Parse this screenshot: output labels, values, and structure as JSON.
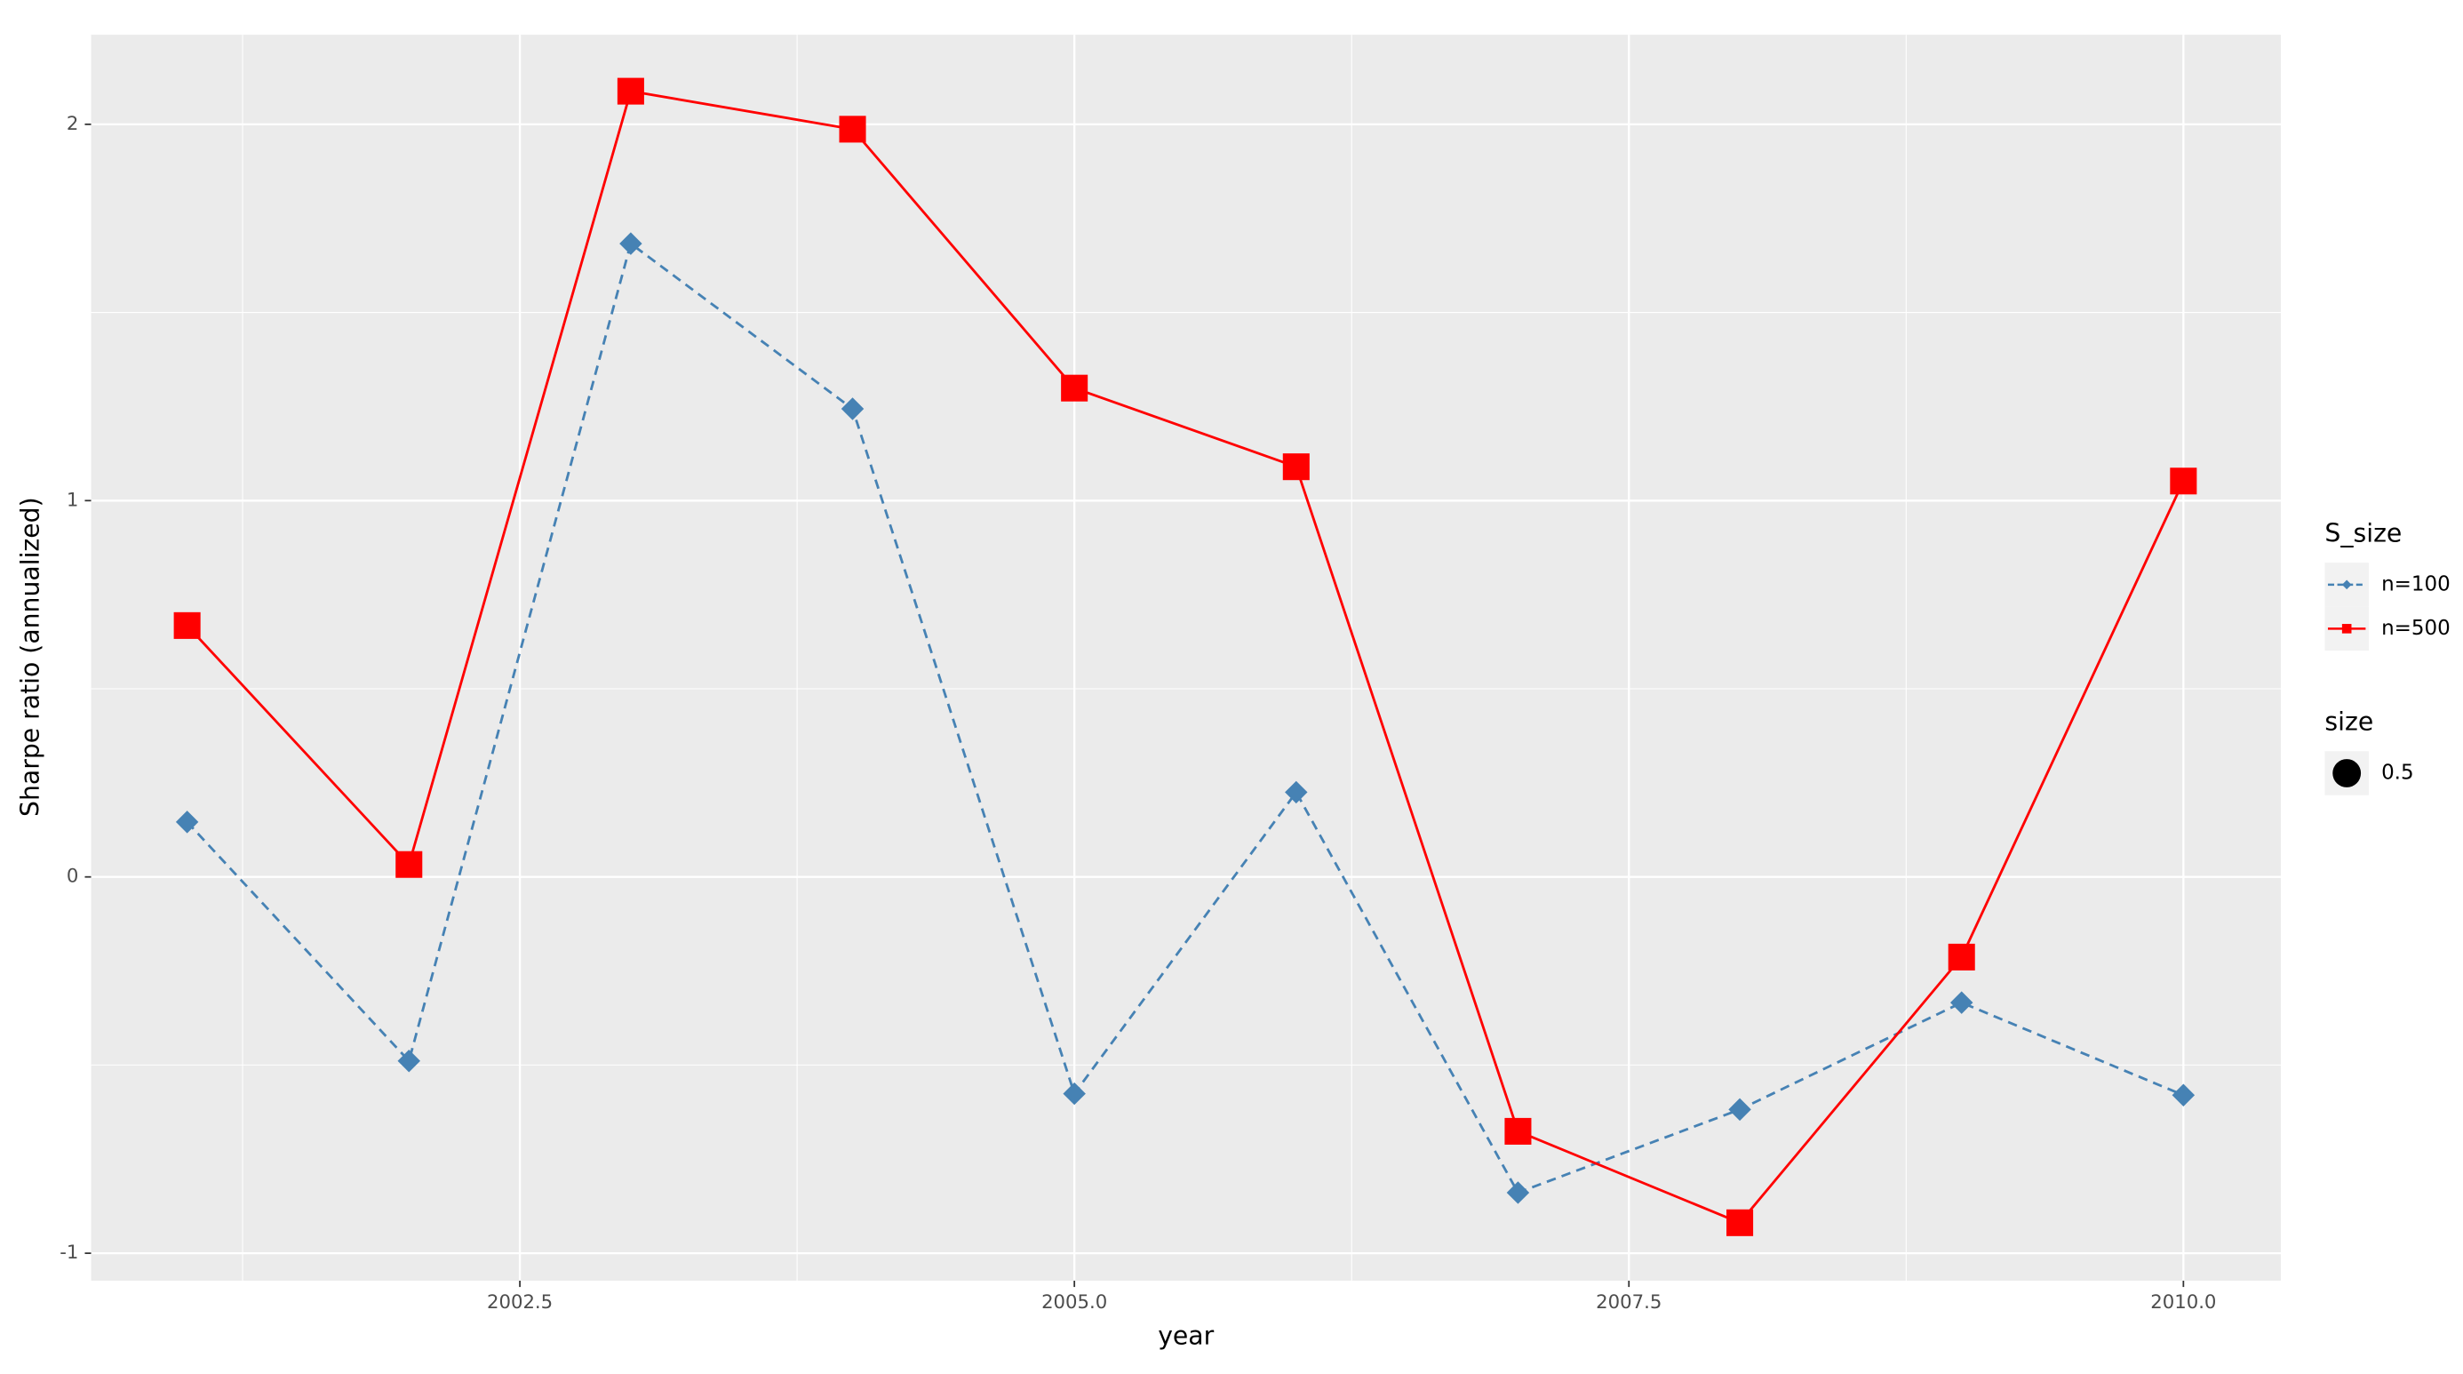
{
  "chart_data": {
    "type": "line",
    "x_label": "year",
    "y_label": "Sharpe ratio (annualized)",
    "x": [
      2001,
      2002,
      2003,
      2004,
      2005,
      2006,
      2007,
      2008,
      2009,
      2010
    ],
    "series": [
      {
        "name": "n=100",
        "color": "#4682b4",
        "linestyle": "dashed",
        "marker": "diamond",
        "values": [
          0.146,
          -0.489,
          1.683,
          1.244,
          -0.576,
          0.225,
          -0.839,
          -0.618,
          -0.334,
          -0.58
        ]
      },
      {
        "name": "n=500",
        "color": "#ff0000",
        "linestyle": "solid",
        "marker": "square",
        "values": [
          0.668,
          0.033,
          2.088,
          1.987,
          1.299,
          1.09,
          -0.676,
          -0.919,
          -0.213,
          1.052
        ]
      }
    ],
    "xlim": [
      2000.567,
      2010.439
    ],
    "ylim": [
      -1.073,
      2.238
    ],
    "xticks": [
      {
        "value": 2002.5,
        "label": "2002.5"
      },
      {
        "value": 2005,
        "label": "2005.0"
      },
      {
        "value": 2007.5,
        "label": "2007.5"
      },
      {
        "value": 2010,
        "label": "2010.0"
      }
    ],
    "yticks": [
      -1,
      0,
      1,
      2
    ],
    "grid": true,
    "legend_title": "S_size",
    "size_legend": {
      "title": "size",
      "labels": [
        "0.5"
      ]
    }
  }
}
